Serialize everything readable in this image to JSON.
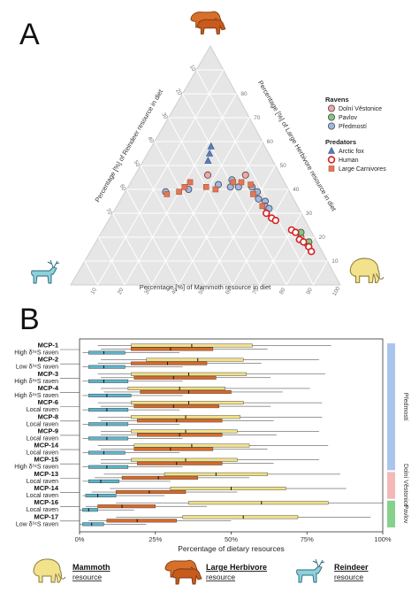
{
  "panels": {
    "a": "A",
    "b": "B"
  },
  "chart_data": [
    {
      "type": "scatter",
      "subtype": "ternary",
      "axes": {
        "mammoth": {
          "label": "Percentage [%] of Mammoth resource in diet",
          "ticks": [
            10,
            20,
            30,
            40,
            50,
            60,
            70,
            80,
            90,
            100
          ],
          "range": [
            0,
            100
          ]
        },
        "large_herbivore": {
          "label": "Percentage [%] of Large Herbivore resource in diet",
          "ticks": [
            10,
            20,
            30,
            40,
            50,
            60,
            70,
            80
          ],
          "labelled_ticks": [
            10,
            20,
            30,
            40,
            50,
            60,
            70,
            80
          ],
          "range": [
            0,
            100
          ]
        },
        "reindeer": {
          "label": "Percentage [%] of Reindeer resource in diet",
          "ticks": [
            10,
            20,
            30,
            40,
            50,
            60,
            70
          ],
          "range": [
            0,
            100
          ]
        }
      },
      "grid": true,
      "background": "#e6e6e6",
      "legend": {
        "placement": "right",
        "groups": [
          {
            "title": "Ravens",
            "items": [
              {
                "label": "Dolní Věstonice",
                "shape": "circle",
                "color": "#f4a6a6",
                "stroke": "#444444"
              },
              {
                "label": "Pavlov",
                "shape": "circle",
                "color": "#7fc97f",
                "stroke": "#444444"
              },
              {
                "label": "Předmostí",
                "shape": "circle",
                "color": "#9fb8e6",
                "stroke": "#444444"
              }
            ]
          },
          {
            "title": "Predators",
            "items": [
              {
                "label": "Arctic fox",
                "shape": "triangle",
                "color": "#5b7bb5",
                "stroke": "#3a5a90"
              },
              {
                "label": "Human",
                "shape": "ring",
                "color": "#ffffff",
                "stroke": "#d62020"
              },
              {
                "label": "Large Carnivores",
                "shape": "square",
                "color": "#e07858",
                "stroke": "#b05030"
              }
            ]
          }
        ]
      },
      "series": [
        {
          "name": "Předmostí",
          "shape": "circle",
          "color": "#9fb8e6",
          "stroke": "#444444",
          "points": [
            {
              "m": 23,
              "h": 40,
              "r": 37
            },
            {
              "m": 33,
              "h": 42,
              "r": 25
            },
            {
              "m": 37,
              "h": 44,
              "r": 19
            },
            {
              "m": 38,
              "h": 41,
              "r": 21
            },
            {
              "m": 41,
              "h": 41,
              "r": 18
            },
            {
              "m": 46,
              "h": 41,
              "r": 13
            },
            {
              "m": 49,
              "h": 39,
              "r": 12
            },
            {
              "m": 51,
              "h": 36,
              "r": 13
            },
            {
              "m": 54,
              "h": 35,
              "r": 11
            },
            {
              "m": 55,
              "h": 33,
              "r": 12
            },
            {
              "m": 57,
              "h": 32,
              "r": 11
            },
            {
              "m": 15,
              "h": 39,
              "r": 46
            }
          ]
        },
        {
          "name": "Dolní Věstonice",
          "shape": "circle",
          "color": "#f4a6a6",
          "stroke": "#444444",
          "points": [
            {
              "m": 27,
              "h": 46,
              "r": 27
            },
            {
              "m": 41,
              "h": 46,
              "r": 13
            },
            {
              "m": 75,
              "h": 20,
              "r": 5
            },
            {
              "m": 79,
              "h": 17,
              "r": 4
            }
          ]
        },
        {
          "name": "Pavlov",
          "shape": "circle",
          "color": "#7fc97f",
          "stroke": "#444444",
          "points": [
            {
              "m": 74,
              "h": 22,
              "r": 4
            },
            {
              "m": 79,
              "h": 18,
              "r": 3
            }
          ]
        },
        {
          "name": "Arctic fox",
          "shape": "triangle",
          "color": "#5b7bb5",
          "stroke": "#3a5a90",
          "points": [
            {
              "m": 22,
              "h": 58,
              "r": 20
            },
            {
              "m": 23,
              "h": 55,
              "r": 22
            },
            {
              "m": 24,
              "h": 52,
              "r": 24
            }
          ]
        },
        {
          "name": "Human",
          "shape": "ring",
          "color": "#ffffff",
          "stroke": "#d62020",
          "points": [
            {
              "m": 57,
              "h": 30,
              "r": 13
            },
            {
              "m": 60,
              "h": 28,
              "r": 12
            },
            {
              "m": 62,
              "h": 27,
              "r": 11
            },
            {
              "m": 70,
              "h": 23,
              "r": 7
            },
            {
              "m": 72,
              "h": 22,
              "r": 6
            },
            {
              "m": 75,
              "h": 19,
              "r": 6
            },
            {
              "m": 77,
              "h": 18,
              "r": 5
            },
            {
              "m": 80,
              "h": 16,
              "r": 4
            },
            {
              "m": 82,
              "h": 14,
              "r": 4
            }
          ]
        },
        {
          "name": "Large Carnivores",
          "shape": "square",
          "color": "#e07858",
          "stroke": "#b05030",
          "points": [
            {
              "m": 16,
              "h": 38,
              "r": 46
            },
            {
              "m": 20,
              "h": 39,
              "r": 41
            },
            {
              "m": 21,
              "h": 41,
              "r": 38
            },
            {
              "m": 22,
              "h": 43,
              "r": 35
            },
            {
              "m": 29,
              "h": 41,
              "r": 30
            },
            {
              "m": 33,
              "h": 40,
              "r": 27
            },
            {
              "m": 38,
              "h": 43,
              "r": 19
            },
            {
              "m": 41,
              "h": 43,
              "r": 16
            },
            {
              "m": 45,
              "h": 42,
              "r": 13
            },
            {
              "m": 48,
              "h": 38,
              "r": 14
            },
            {
              "m": 54,
              "h": 33,
              "r": 13
            }
          ]
        }
      ]
    },
    {
      "type": "bar",
      "subtype": "horizontal-boxplot",
      "xlabel": "Percentage of dietary resources",
      "xlim": [
        0,
        100
      ],
      "xticks": [
        "0%",
        "25%",
        "50%",
        "75%",
        "100%"
      ],
      "xtick_values": [
        0,
        25,
        50,
        75,
        100
      ],
      "series": [
        {
          "name": "Mammoth resource",
          "color": "#f0e08a"
        },
        {
          "name": "Large Herbivore resource",
          "color": "#d86a2a"
        },
        {
          "name": "Reindeer resource",
          "color": "#5fb3c8"
        }
      ],
      "sites": [
        {
          "name": "Předmostí",
          "color": "#a9c5ee",
          "from": 0,
          "to": 8
        },
        {
          "name": "Dolní Věstonice",
          "color": "#f4b8b8",
          "from": 9,
          "to": 10
        },
        {
          "name": "Pavlov",
          "color": "#86d28c",
          "from": 11,
          "to": 12
        }
      ],
      "samples": [
        {
          "id": "MCP-1",
          "label": "High δ³⁴S raven",
          "boxes": {
            "mammoth": {
              "wl": 6,
              "q1": 17,
              "med": 37,
              "q3": 57,
              "wh": 83
            },
            "herbivore": {
              "wl": 7,
              "q1": 17,
              "med": 30,
              "q3": 44,
              "wh": 62
            },
            "reindeer": {
              "wl": 1,
              "q1": 3,
              "med": 8,
              "q3": 15,
              "wh": 33
            }
          }
        },
        {
          "id": "MCP-2",
          "label": "Low δ³⁴S raven",
          "boxes": {
            "mammoth": {
              "wl": 7,
              "q1": 22,
              "med": 39,
              "q3": 54,
              "wh": 79
            },
            "herbivore": {
              "wl": 6,
              "q1": 17,
              "med": 29,
              "q3": 42,
              "wh": 60
            },
            "reindeer": {
              "wl": 1,
              "q1": 3,
              "med": 8,
              "q3": 15,
              "wh": 34
            }
          }
        },
        {
          "id": "MCP-3",
          "label": "High δ³⁴S raven",
          "boxes": {
            "mammoth": {
              "wl": 6,
              "q1": 17,
              "med": 36,
              "q3": 55,
              "wh": 81
            },
            "herbivore": {
              "wl": 7,
              "q1": 18,
              "med": 31,
              "q3": 45,
              "wh": 63
            },
            "reindeer": {
              "wl": 1,
              "q1": 3,
              "med": 8,
              "q3": 16,
              "wh": 34
            }
          }
        },
        {
          "id": "MCP-4",
          "label": "High δ³⁴S raven",
          "boxes": {
            "mammoth": {
              "wl": 7,
              "q1": 16,
              "med": 33,
              "q3": 48,
              "wh": 76
            },
            "herbivore": {
              "wl": 8,
              "q1": 20,
              "med": 36,
              "q3": 50,
              "wh": 67
            },
            "reindeer": {
              "wl": 1,
              "q1": 3,
              "med": 9,
              "q3": 17,
              "wh": 34
            }
          }
        },
        {
          "id": "MCP-6",
          "label": "Local raven",
          "boxes": {
            "mammoth": {
              "wl": 6,
              "q1": 17,
              "med": 36,
              "q3": 54,
              "wh": 80
            },
            "herbivore": {
              "wl": 7,
              "q1": 18,
              "med": 31,
              "q3": 46,
              "wh": 63
            },
            "reindeer": {
              "wl": 1,
              "q1": 3,
              "med": 9,
              "q3": 16,
              "wh": 33
            }
          }
        },
        {
          "id": "MCP-8",
          "label": "Local raven",
          "boxes": {
            "mammoth": {
              "wl": 6,
              "q1": 17,
              "med": 35,
              "q3": 53,
              "wh": 80
            },
            "herbivore": {
              "wl": 7,
              "q1": 19,
              "med": 32,
              "q3": 47,
              "wh": 64
            },
            "reindeer": {
              "wl": 1,
              "q1": 3,
              "med": 9,
              "q3": 16,
              "wh": 33
            }
          }
        },
        {
          "id": "MCP-9",
          "label": "Local raven",
          "boxes": {
            "mammoth": {
              "wl": 7,
              "q1": 17,
              "med": 35,
              "q3": 52,
              "wh": 79
            },
            "herbivore": {
              "wl": 7,
              "q1": 19,
              "med": 33,
              "q3": 47,
              "wh": 65
            },
            "reindeer": {
              "wl": 1,
              "q1": 3,
              "med": 9,
              "q3": 16,
              "wh": 34
            }
          }
        },
        {
          "id": "MCP-14",
          "label": "Local raven",
          "boxes": {
            "mammoth": {
              "wl": 6,
              "q1": 18,
              "med": 37,
              "q3": 56,
              "wh": 82
            },
            "herbivore": {
              "wl": 7,
              "q1": 18,
              "med": 30,
              "q3": 44,
              "wh": 62
            },
            "reindeer": {
              "wl": 1,
              "q1": 3,
              "med": 8,
              "q3": 15,
              "wh": 33
            }
          }
        },
        {
          "id": "MCP-15",
          "label": "High δ³⁴S raven",
          "boxes": {
            "mammoth": {
              "wl": 7,
              "q1": 17,
              "med": 35,
              "q3": 52,
              "wh": 79
            },
            "herbivore": {
              "wl": 7,
              "q1": 19,
              "med": 32,
              "q3": 47,
              "wh": 64
            },
            "reindeer": {
              "wl": 1,
              "q1": 3,
              "med": 9,
              "q3": 16,
              "wh": 34
            }
          }
        },
        {
          "id": "MCP-13",
          "label": "Local raven",
          "boxes": {
            "mammoth": {
              "wl": 8,
              "q1": 28,
              "med": 45,
              "q3": 62,
              "wh": 86
            },
            "herbivore": {
              "wl": 5,
              "q1": 14,
              "med": 26,
              "q3": 39,
              "wh": 56
            },
            "reindeer": {
              "wl": 1,
              "q1": 3,
              "med": 7,
              "q3": 13,
              "wh": 30
            }
          }
        },
        {
          "id": "MCP-14",
          "label": "Local raven",
          "boxes": {
            "mammoth": {
              "wl": 10,
              "q1": 30,
              "med": 50,
              "q3": 68,
              "wh": 88
            },
            "herbivore": {
              "wl": 4,
              "q1": 12,
              "med": 23,
              "q3": 35,
              "wh": 52
            },
            "reindeer": {
              "wl": 1,
              "q1": 2,
              "med": 6,
              "q3": 12,
              "wh": 28
            }
          }
        },
        {
          "id": "MCP-16",
          "label": "Local raven",
          "boxes": {
            "mammoth": {
              "wl": 12,
              "q1": 36,
              "med": 60,
              "q3": 82,
              "wh": 100
            },
            "herbivore": {
              "wl": 2,
              "q1": 6,
              "med": 14,
              "q3": 25,
              "wh": 42
            },
            "reindeer": {
              "wl": 0,
              "q1": 1,
              "med": 3,
              "q3": 6,
              "wh": 18
            }
          }
        },
        {
          "id": "MCP-17",
          "label": "Low δ³⁴S raven",
          "boxes": {
            "mammoth": {
              "wl": 12,
              "q1": 34,
              "med": 54,
              "q3": 72,
              "wh": 96
            },
            "herbivore": {
              "wl": 3,
              "q1": 9,
              "med": 19,
              "q3": 32,
              "wh": 50
            },
            "reindeer": {
              "wl": 0,
              "q1": 1,
              "med": 4,
              "q3": 8,
              "wh": 22
            }
          }
        }
      ],
      "legend": {
        "placement": "bottom",
        "items": [
          {
            "title": "Mammoth",
            "subtitle": "resource",
            "icon": "mammoth-icon"
          },
          {
            "title": "Large Herbivore",
            "subtitle": "resource",
            "icon": "large-herbivore-icon"
          },
          {
            "title": "Reindeer",
            "subtitle": "resource",
            "icon": "reindeer-icon"
          }
        ]
      }
    }
  ]
}
